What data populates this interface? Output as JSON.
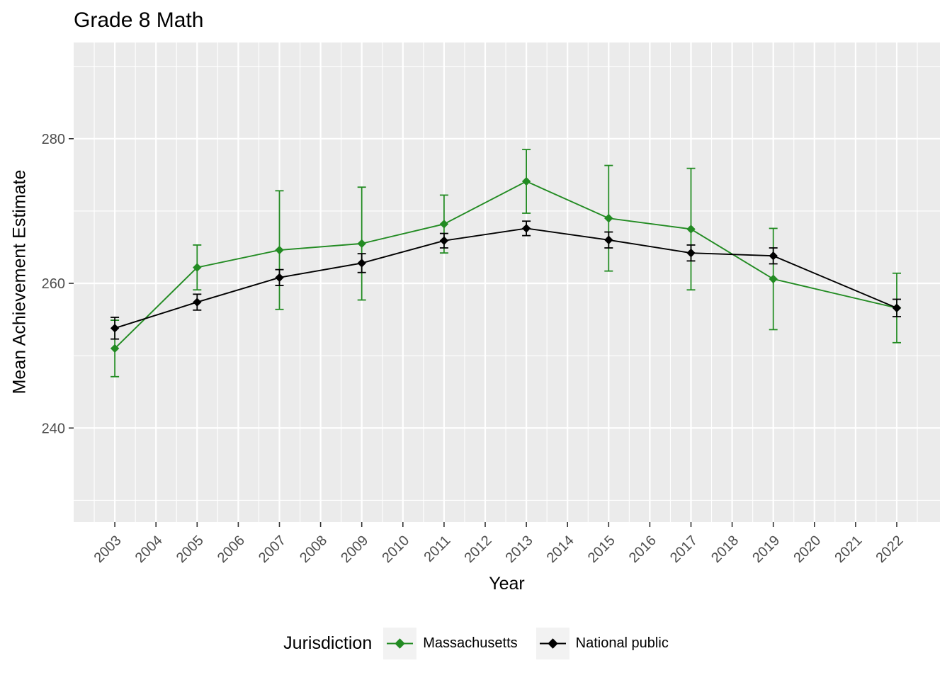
{
  "title": "Grade 8 Math",
  "colors": {
    "background": "#FFFFFF",
    "panel": "#EBEBEB",
    "gridline": "#FFFFFF",
    "tick_label": "#4D4D4D",
    "tick_mark": "#333333",
    "legend_key_fill": "#F2F2F2",
    "text": "#000000"
  },
  "chart_data": {
    "type": "line",
    "title": "Grade 8 Math",
    "xlabel": "Year",
    "ylabel": "Mean Achievement Estimate",
    "legend": {
      "title": "Jurisdiction",
      "position": "bottom"
    },
    "grid": true,
    "xlim": [
      2002.0,
      2023.05
    ],
    "ylim": [
      227.0,
      293.3
    ],
    "x_ticks": [
      2003,
      2004,
      2005,
      2006,
      2007,
      2008,
      2009,
      2010,
      2011,
      2012,
      2013,
      2014,
      2015,
      2016,
      2017,
      2018,
      2019,
      2020,
      2021,
      2022
    ],
    "y_ticks": [
      240,
      260,
      280
    ],
    "y_minor_ticks": [
      230,
      250,
      270,
      290
    ],
    "x": [
      2003,
      2005,
      2007,
      2009,
      2011,
      2013,
      2015,
      2017,
      2019,
      2022
    ],
    "series": [
      {
        "name": "Massachusetts",
        "color": "#228B22",
        "values": [
          251.0,
          262.2,
          264.6,
          265.5,
          268.2,
          274.1,
          269.0,
          267.5,
          260.6,
          256.6
        ],
        "error_margin": [
          3.9,
          3.1,
          8.2,
          7.8,
          4.0,
          4.4,
          7.3,
          8.4,
          7.0,
          4.8
        ]
      },
      {
        "name": "National public",
        "color": "#000000",
        "values": [
          253.8,
          257.4,
          260.8,
          262.8,
          265.9,
          267.6,
          266.0,
          264.2,
          263.8,
          256.6
        ],
        "error_margin": [
          1.5,
          1.1,
          1.1,
          1.3,
          1.0,
          1.0,
          1.1,
          1.1,
          1.1,
          1.2
        ]
      }
    ]
  }
}
